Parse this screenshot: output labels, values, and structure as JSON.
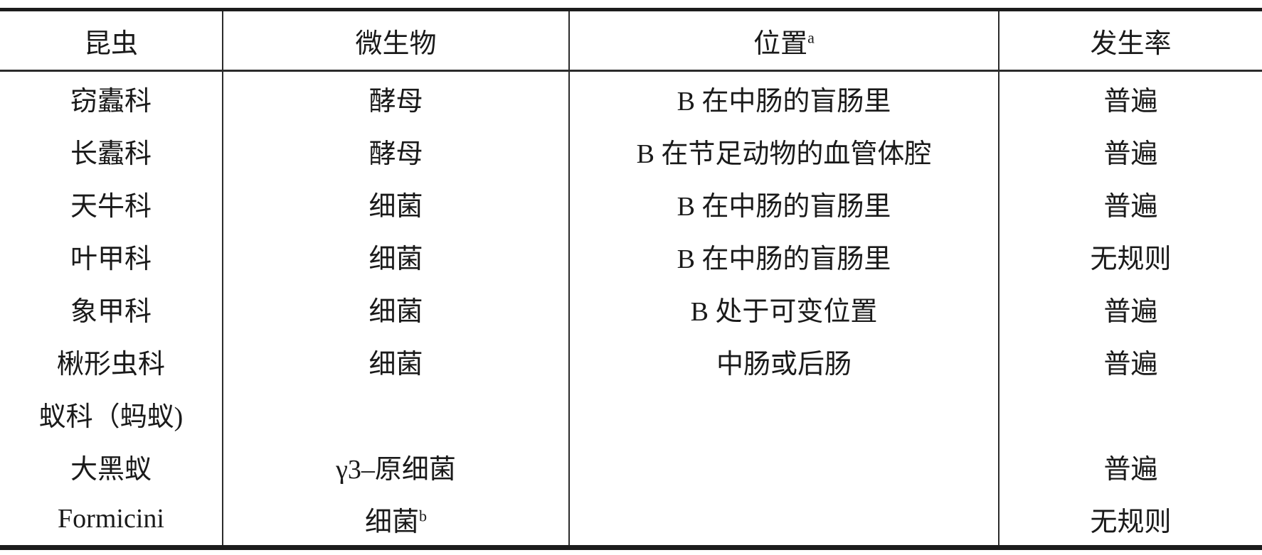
{
  "table": {
    "header": {
      "cells": [
        {
          "text": "昆虫"
        },
        {
          "text": "微生物"
        },
        {
          "text": "位置",
          "sup": "a"
        },
        {
          "text": "发生率"
        }
      ]
    },
    "rows": [
      {
        "cells": [
          {
            "text": "窃蠹科"
          },
          {
            "text": "酵母"
          },
          {
            "text": "B 在中肠的盲肠里"
          },
          {
            "text": "普遍"
          }
        ]
      },
      {
        "cells": [
          {
            "text": "长蠹科"
          },
          {
            "text": "酵母"
          },
          {
            "text": "B 在节足动物的血管体腔"
          },
          {
            "text": "普遍"
          }
        ]
      },
      {
        "cells": [
          {
            "text": "天牛科"
          },
          {
            "text": "细菌"
          },
          {
            "text": "B 在中肠的盲肠里"
          },
          {
            "text": "普遍"
          }
        ]
      },
      {
        "cells": [
          {
            "text": "叶甲科"
          },
          {
            "text": "细菌"
          },
          {
            "text": "B 在中肠的盲肠里"
          },
          {
            "text": "无规则"
          }
        ]
      },
      {
        "cells": [
          {
            "text": "象甲科"
          },
          {
            "text": "细菌"
          },
          {
            "text": "B 处于可变位置"
          },
          {
            "text": "普遍"
          }
        ]
      },
      {
        "cells": [
          {
            "text": "楸形虫科"
          },
          {
            "text": "细菌"
          },
          {
            "text": "中肠或后肠"
          },
          {
            "text": "普遍"
          }
        ]
      },
      {
        "cells": [
          {
            "text": "蚁科（蚂蚁)"
          },
          {
            "text": ""
          },
          {
            "text": ""
          },
          {
            "text": ""
          }
        ]
      },
      {
        "cells": [
          {
            "text": "大黑蚁"
          },
          {
            "text": "γ3–原细菌"
          },
          {
            "text": ""
          },
          {
            "text": "普遍"
          }
        ]
      },
      {
        "cells": [
          {
            "text": "Formicini"
          },
          {
            "text": "细菌",
            "sup": "b"
          },
          {
            "text": ""
          },
          {
            "text": "无规则"
          }
        ]
      }
    ]
  }
}
